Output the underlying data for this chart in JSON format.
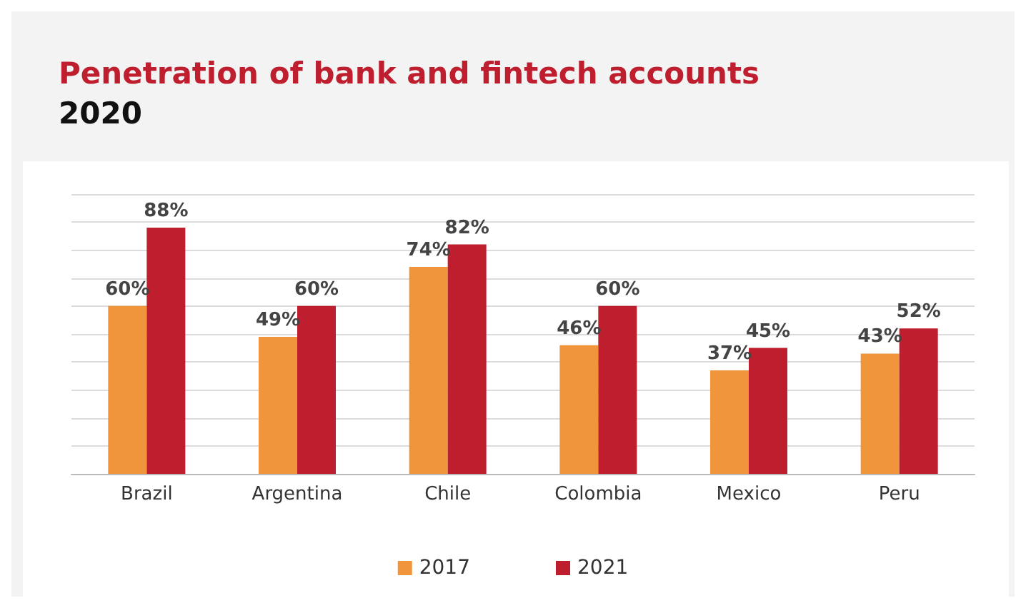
{
  "chart_data": {
    "type": "bar",
    "title": "Penetration of bank and fintech accounts",
    "subtitle": "2020",
    "categories": [
      "Brazil",
      "Argentina",
      "Chile",
      "Colombia",
      "Mexico",
      "Peru"
    ],
    "series": [
      {
        "name": "2017",
        "color": "#f0953c",
        "values": [
          60,
          49,
          74,
          46,
          37,
          43
        ],
        "value_labels": [
          "60%",
          "49%",
          "74%",
          "46%",
          "37%",
          "43%"
        ]
      },
      {
        "name": "2021",
        "color": "#be1e2d",
        "values": [
          88,
          60,
          82,
          60,
          45,
          52
        ],
        "value_labels": [
          "88%",
          "60%",
          "82%",
          "60%",
          "45%",
          "52%"
        ]
      }
    ],
    "ylim": [
      0,
      100
    ],
    "yticks": [
      {
        "value": 0,
        "label": null
      },
      {
        "value": 10,
        "label": null
      },
      {
        "value": 20,
        "label": null
      },
      {
        "value": 30,
        "label": null
      },
      {
        "value": 40,
        "label": null
      },
      {
        "value": 50,
        "label": null
      },
      {
        "value": 60,
        "label": null
      },
      {
        "value": 70,
        "label": null
      },
      {
        "value": 80,
        "label": null
      },
      {
        "value": 90,
        "label": null
      },
      {
        "value": 100,
        "label": null
      }
    ],
    "tick_labels": "x",
    "grid": "y",
    "legend": "bottom"
  }
}
